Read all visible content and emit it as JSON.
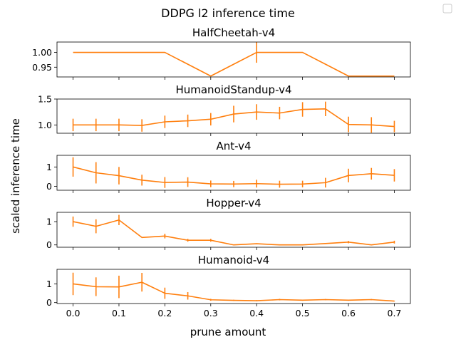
{
  "figure": {
    "suptitle": "DDPG l2 inference time",
    "ylabel": "scaled inference time",
    "xlabel": "prune amount",
    "series_color": "#ff7f0e",
    "errorbar_color": "#ff7f0e",
    "legend_placement": "top-right",
    "legend_entries": []
  },
  "chart_data": [
    {
      "type": "line",
      "title": "HalfCheetah-v4",
      "xlabel": "prune amount",
      "ylabel": "",
      "x": [
        0.0,
        0.05,
        0.1,
        0.15,
        0.2,
        0.25,
        0.3,
        0.35,
        0.4,
        0.45,
        0.5,
        0.55,
        0.6,
        0.65,
        0.7
      ],
      "y": [
        1.0,
        1.0,
        1.0,
        1.0,
        1.0,
        0.96,
        0.92,
        0.96,
        1.0,
        1.0,
        1.0,
        0.96,
        0.92,
        0.92,
        0.92
      ],
      "yerr": [
        0,
        0,
        0,
        0,
        0,
        0,
        0,
        0,
        0.035,
        0,
        0,
        0,
        0,
        0,
        0
      ],
      "xlim": [
        -0.035,
        0.735
      ],
      "ylim": [
        0.917,
        1.035
      ],
      "yticks": [
        0.95,
        1.0
      ],
      "ytick_labels": [
        "0.95",
        "1.00"
      ],
      "xticks": [
        0.0,
        0.1,
        0.2,
        0.3,
        0.4,
        0.5,
        0.6,
        0.7
      ],
      "xtick_labels": [],
      "grid": false
    },
    {
      "type": "line",
      "title": "HumanoidStandup-v4",
      "xlabel": "prune amount",
      "ylabel": "",
      "x": [
        0.0,
        0.05,
        0.1,
        0.15,
        0.2,
        0.25,
        0.3,
        0.35,
        0.4,
        0.45,
        0.5,
        0.55,
        0.6,
        0.65,
        0.7
      ],
      "y": [
        1.0,
        1.0,
        1.0,
        0.99,
        1.06,
        1.08,
        1.11,
        1.21,
        1.25,
        1.23,
        1.3,
        1.31,
        1.01,
        1.0,
        0.97
      ],
      "yerr": [
        0.12,
        0.12,
        0.12,
        0.12,
        0.12,
        0.12,
        0.12,
        0.16,
        0.15,
        0.12,
        0.14,
        0.14,
        0.15,
        0.15,
        0.11
      ],
      "xlim": [
        -0.035,
        0.735
      ],
      "ylim": [
        0.84,
        1.5
      ],
      "yticks": [
        1.0,
        1.5
      ],
      "ytick_labels": [
        "1.0",
        "1.5"
      ],
      "xticks": [
        0.0,
        0.1,
        0.2,
        0.3,
        0.4,
        0.5,
        0.6,
        0.7
      ],
      "xtick_labels": [],
      "grid": false
    },
    {
      "type": "line",
      "title": "Ant-v4",
      "xlabel": "prune amount",
      "ylabel": "",
      "x": [
        0.0,
        0.05,
        0.1,
        0.15,
        0.2,
        0.25,
        0.3,
        0.35,
        0.4,
        0.45,
        0.5,
        0.55,
        0.6,
        0.65,
        0.7
      ],
      "y": [
        1.0,
        0.7,
        0.55,
        0.32,
        0.2,
        0.22,
        0.13,
        0.12,
        0.14,
        0.11,
        0.12,
        0.19,
        0.56,
        0.65,
        0.57
      ],
      "yerr": [
        0.5,
        0.55,
        0.45,
        0.28,
        0.28,
        0.25,
        0.17,
        0.16,
        0.2,
        0.18,
        0.17,
        0.25,
        0.35,
        0.3,
        0.32
      ],
      "xlim": [
        -0.035,
        0.735
      ],
      "ylim": [
        -0.2,
        1.6
      ],
      "yticks": [
        0,
        1
      ],
      "ytick_labels": [
        "0",
        "1"
      ],
      "xticks": [
        0.0,
        0.1,
        0.2,
        0.3,
        0.4,
        0.5,
        0.6,
        0.7
      ],
      "xtick_labels": [],
      "grid": false
    },
    {
      "type": "line",
      "title": "Hopper-v4",
      "xlabel": "prune amount",
      "ylabel": "",
      "x": [
        0.0,
        0.05,
        0.1,
        0.15,
        0.2,
        0.25,
        0.3,
        0.35,
        0.4,
        0.45,
        0.5,
        0.55,
        0.6,
        0.65,
        0.7
      ],
      "y": [
        1.0,
        0.8,
        1.07,
        0.32,
        0.38,
        0.2,
        0.2,
        0.0,
        0.05,
        0.0,
        0.0,
        0.06,
        0.12,
        0.0,
        0.12
      ],
      "yerr": [
        0.22,
        0.3,
        0.22,
        0.0,
        0.1,
        0.06,
        0.06,
        0.0,
        0.0,
        0.0,
        0.0,
        0.0,
        0.05,
        0.0,
        0.06
      ],
      "xlim": [
        -0.035,
        0.735
      ],
      "ylim": [
        -0.1,
        1.4
      ],
      "yticks": [
        0,
        1
      ],
      "ytick_labels": [
        "0",
        "1"
      ],
      "xticks": [
        0.0,
        0.1,
        0.2,
        0.3,
        0.4,
        0.5,
        0.6,
        0.7
      ],
      "xtick_labels": [],
      "grid": false
    },
    {
      "type": "line",
      "title": "Humanoid-v4",
      "xlabel": "prune amount",
      "ylabel": "",
      "x": [
        0.0,
        0.05,
        0.1,
        0.15,
        0.2,
        0.25,
        0.3,
        0.35,
        0.4,
        0.45,
        0.5,
        0.55,
        0.6,
        0.65,
        0.7
      ],
      "y": [
        1.0,
        0.85,
        0.84,
        1.09,
        0.5,
        0.36,
        0.15,
        0.12,
        0.1,
        0.16,
        0.13,
        0.16,
        0.13,
        0.16,
        0.08
      ],
      "yerr": [
        0.6,
        0.5,
        0.6,
        0.5,
        0.3,
        0.2,
        0.05,
        0.03,
        0.03,
        0.04,
        0.03,
        0.03,
        0.03,
        0.03,
        0.02
      ],
      "xlim": [
        -0.035,
        0.735
      ],
      "ylim": [
        -0.05,
        1.78
      ],
      "yticks": [
        0,
        1
      ],
      "ytick_labels": [
        "0",
        "1"
      ],
      "xticks": [
        0.0,
        0.1,
        0.2,
        0.3,
        0.4,
        0.5,
        0.6,
        0.7
      ],
      "xtick_labels": [
        "0.0",
        "0.1",
        "0.2",
        "0.3",
        "0.4",
        "0.5",
        "0.6",
        "0.7"
      ],
      "grid": false
    }
  ]
}
